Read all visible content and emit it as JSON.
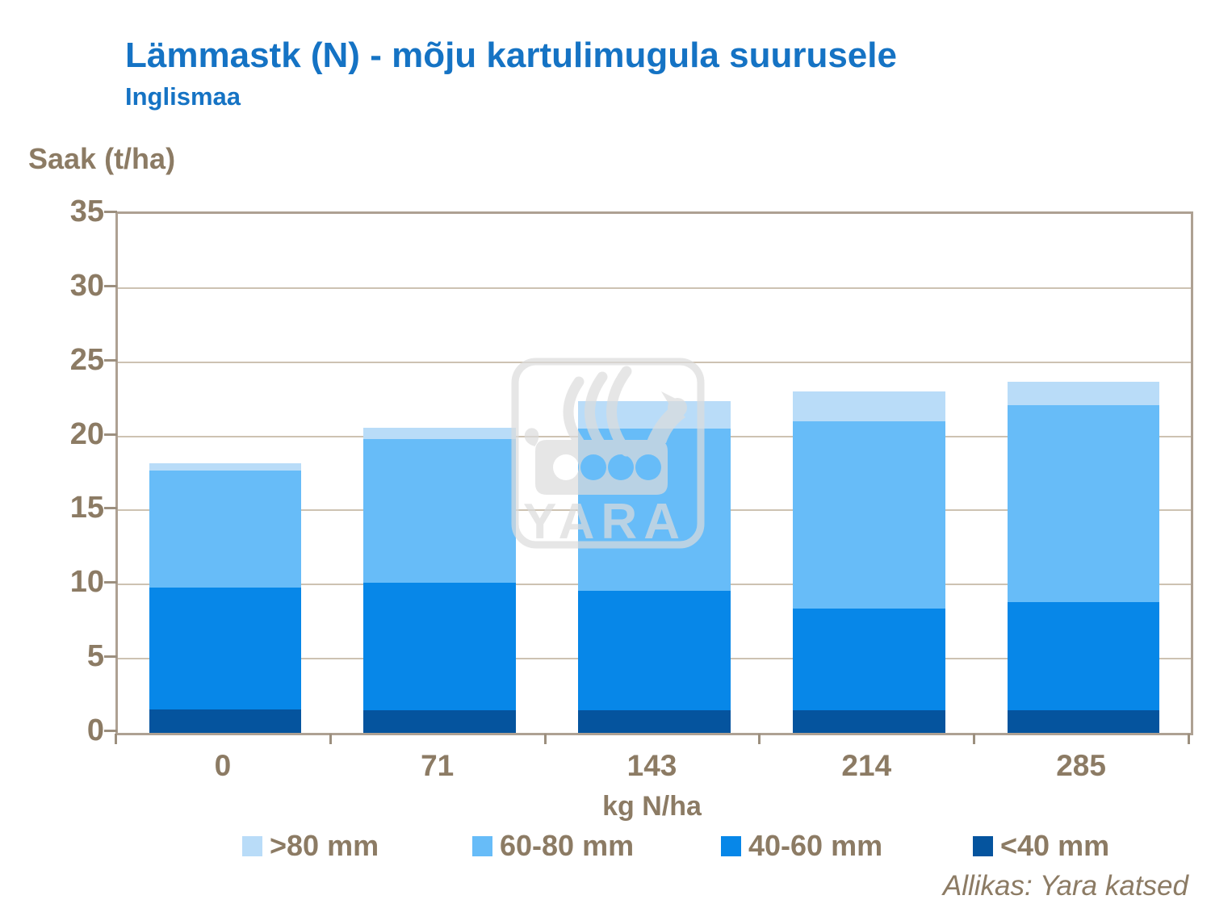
{
  "title": {
    "text": "Lämmastk (N) - mõju kartulimugula suurusele"
  },
  "subtitle": {
    "text": "Inglismaa"
  },
  "axes": {
    "y_title": "Saak (t/ha)",
    "x_title": "kg N/ha"
  },
  "legend": {
    "position": "bottom",
    "items": [
      {
        "label": ">80 mm",
        "color": "#B9DCF8"
      },
      {
        "label": "60-80 mm",
        "color": "#67BCF8"
      },
      {
        "label": "40-60 mm",
        "color": "#0787E8"
      },
      {
        "label": "<40 mm",
        "color": "#05549E"
      }
    ]
  },
  "source": {
    "text": "Allikas: Yara katsed"
  },
  "watermark": {
    "text": "YARA"
  },
  "colors": {
    "title_blue": "#1573C4",
    "axis_text": "#8C7B64",
    "frame": "#AEA193",
    "gridline": "#CDC2B2",
    "background": "#FFFFFF"
  },
  "chart_data": {
    "type": "bar",
    "stacked": true,
    "title": "Lämmastk (N) - mõju kartulimugula suurusele",
    "subtitle": "Inglismaa",
    "xlabel": "kg N/ha",
    "ylabel": "Saak (t/ha)",
    "ylim": [
      0,
      35
    ],
    "yticks": [
      0,
      5,
      10,
      15,
      20,
      25,
      30,
      35
    ],
    "grid": true,
    "legend_position": "bottom",
    "categories": [
      "0",
      "71",
      "143",
      "214",
      "285"
    ],
    "series": [
      {
        "name": "<40 mm",
        "color": "#05549E",
        "values": [
          1.6,
          1.5,
          1.5,
          1.5,
          1.5
        ]
      },
      {
        "name": "40-60 mm",
        "color": "#0787E8",
        "values": [
          8.2,
          8.6,
          8.1,
          6.9,
          7.3
        ]
      },
      {
        "name": "60-80 mm",
        "color": "#67BCF8",
        "values": [
          7.9,
          9.7,
          10.9,
          12.6,
          13.3
        ]
      },
      {
        "name": ">80 mm",
        "color": "#B9DCF8",
        "values": [
          0.5,
          0.8,
          1.9,
          2.0,
          1.6
        ]
      }
    ],
    "totals": [
      18.2,
      20.6,
      22.4,
      23.0,
      23.7
    ]
  }
}
